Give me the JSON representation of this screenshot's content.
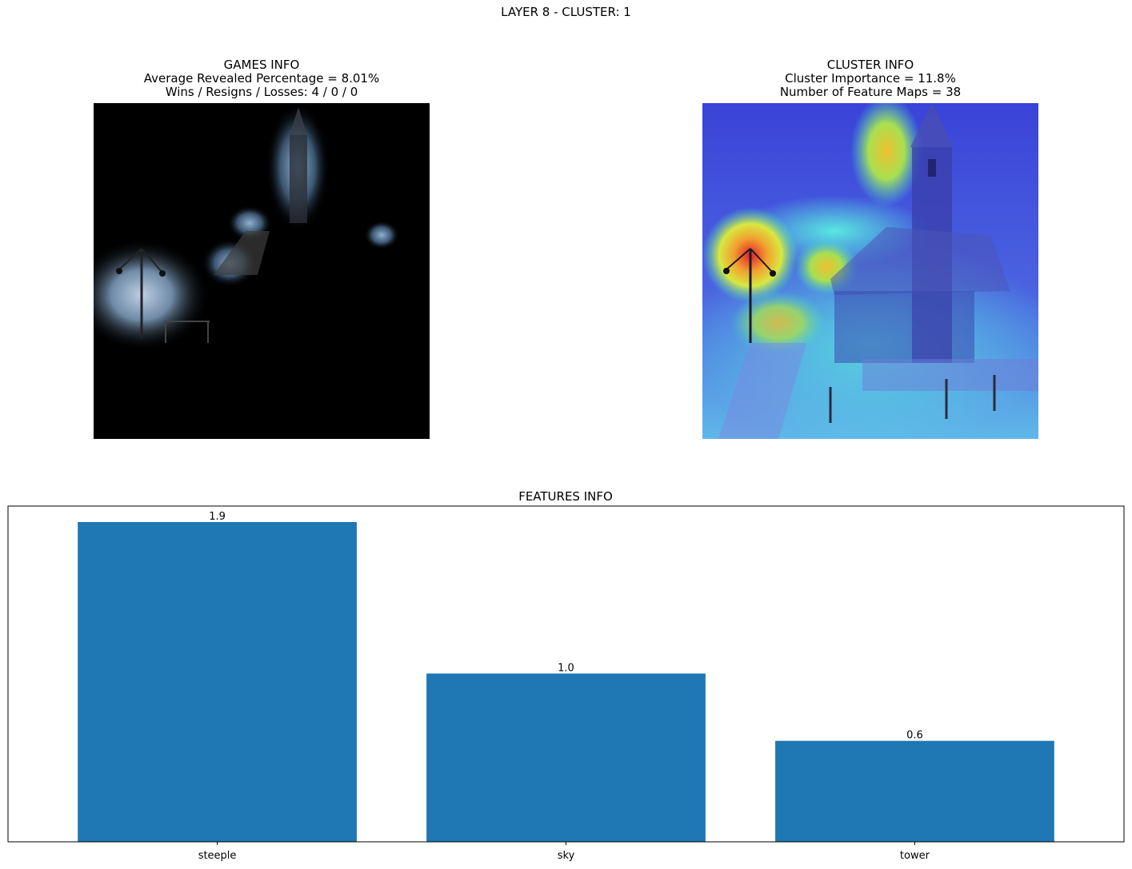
{
  "suptitle": "LAYER 8 - CLUSTER: 1",
  "games_info": {
    "title": "GAMES INFO",
    "line1": "Average Revealed Percentage = 8.01%",
    "line2": "Wins / Resigns / Losses: 4 / 0 / 0"
  },
  "cluster_info": {
    "title": "CLUSTER INFO",
    "line1": "Cluster Importance = 11.8%",
    "line2": "Number of Feature Maps = 38"
  },
  "chart_data": {
    "type": "bar",
    "title": "FEATURES INFO",
    "categories": [
      "steeple",
      "sky",
      "tower"
    ],
    "values": [
      1.9,
      1.0,
      0.6
    ],
    "data_labels": [
      "1.9",
      "1.0",
      "0.6"
    ],
    "ylim": [
      0,
      1.995
    ],
    "bar_color": "#1f77b4",
    "xlabel": "",
    "ylabel": "",
    "grid": false,
    "y_ticks_visible": false
  }
}
